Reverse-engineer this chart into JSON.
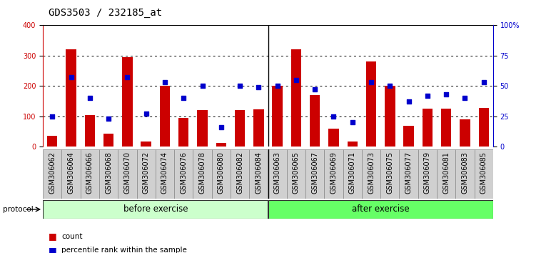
{
  "title": "GDS3503 / 232185_at",
  "categories": [
    "GSM306062",
    "GSM306064",
    "GSM306066",
    "GSM306068",
    "GSM306070",
    "GSM306072",
    "GSM306074",
    "GSM306076",
    "GSM306078",
    "GSM306080",
    "GSM306082",
    "GSM306084",
    "GSM306063",
    "GSM306065",
    "GSM306067",
    "GSM306069",
    "GSM306071",
    "GSM306073",
    "GSM306075",
    "GSM306077",
    "GSM306079",
    "GSM306081",
    "GSM306083",
    "GSM306085"
  ],
  "bar_values": [
    35,
    320,
    105,
    42,
    295,
    18,
    200,
    95,
    120,
    12,
    120,
    122,
    200,
    320,
    170,
    60,
    18,
    280,
    200,
    70,
    125,
    125,
    90,
    128
  ],
  "percentile_values": [
    25,
    57,
    40,
    23,
    57,
    27,
    53,
    40,
    50,
    16,
    50,
    49,
    50,
    55,
    47,
    25,
    20,
    53,
    50,
    37,
    42,
    43,
    40,
    53
  ],
  "bar_color": "#cc0000",
  "dot_color": "#0000cc",
  "ylim_left": [
    0,
    400
  ],
  "ylim_right": [
    0,
    100
  ],
  "yticks_left": [
    0,
    100,
    200,
    300,
    400
  ],
  "yticks_right": [
    0,
    25,
    50,
    75,
    100
  ],
  "ytick_labels_right": [
    "0",
    "25",
    "50",
    "75",
    "100%"
  ],
  "grid_values": [
    100,
    200,
    300
  ],
  "before_exercise_count": 12,
  "after_exercise_count": 12,
  "protocol_label": "protocol",
  "before_label": "before exercise",
  "after_label": "after exercise",
  "before_color": "#ccffcc",
  "after_color": "#66ff66",
  "legend_count_label": "count",
  "legend_percentile_label": "percentile rank within the sample",
  "title_fontsize": 10,
  "tick_fontsize": 7,
  "bar_width": 0.55,
  "xtick_bg_color": "#d0d0d0",
  "plot_bg_color": "#ffffff"
}
